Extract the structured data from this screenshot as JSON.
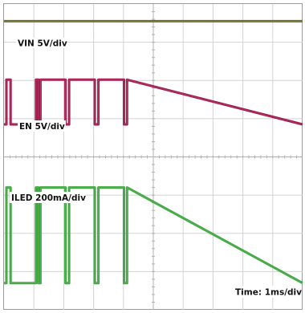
{
  "chart_data": {
    "type": "line",
    "title": "",
    "xlabel": "",
    "ylabel": "",
    "time_label": "Time: 1ms/div",
    "grid": true,
    "x_divisions": 10,
    "y_divisions": 8,
    "xlim": [
      0,
      10
    ],
    "ylim": [
      0,
      8
    ],
    "series": [
      {
        "name": "VIN 5V/div",
        "color": "#6b6b1e",
        "x": [
          0,
          10
        ],
        "y": [
          7.55,
          7.55
        ]
      },
      {
        "name": "EN 5V/div",
        "color": "#a0174a",
        "x": [
          0,
          0.08,
          0.08,
          0.22,
          0.22,
          1.07,
          1.07,
          1.15,
          1.15,
          1.22,
          1.22,
          2.06,
          2.06,
          2.18,
          2.18,
          3.04,
          3.04,
          3.16,
          3.16,
          4.02,
          4.02,
          4.12,
          4.12,
          10
        ],
        "y": [
          4.85,
          4.85,
          6.02,
          6.02,
          4.85,
          4.85,
          6.02,
          6.02,
          4.85,
          4.85,
          6.02,
          6.02,
          4.85,
          4.85,
          6.02,
          6.02,
          4.85,
          4.85,
          6.02,
          6.02,
          4.85,
          4.85,
          6.02,
          4.85
        ]
      },
      {
        "name": "ILED 200mA/div",
        "color": "#3aa53a",
        "x": [
          0,
          0.08,
          0.08,
          0.22,
          0.22,
          1.07,
          1.07,
          1.15,
          1.15,
          1.22,
          1.22,
          2.06,
          2.06,
          2.18,
          2.18,
          3.04,
          3.04,
          3.16,
          3.16,
          4.02,
          4.02,
          4.12,
          4.12,
          10
        ],
        "y": [
          0.7,
          0.7,
          3.2,
          3.2,
          0.7,
          0.7,
          3.2,
          3.2,
          0.7,
          0.7,
          3.2,
          3.2,
          0.7,
          0.7,
          3.2,
          3.2,
          0.7,
          0.7,
          3.2,
          3.2,
          0.7,
          0.7,
          3.2,
          0.7
        ]
      }
    ],
    "labels": [
      {
        "series": 0,
        "text": "VIN 5V/div"
      },
      {
        "series": 1,
        "text": "EN 5V/div"
      },
      {
        "series": 2,
        "text": "ILED 200mA/div"
      }
    ]
  }
}
